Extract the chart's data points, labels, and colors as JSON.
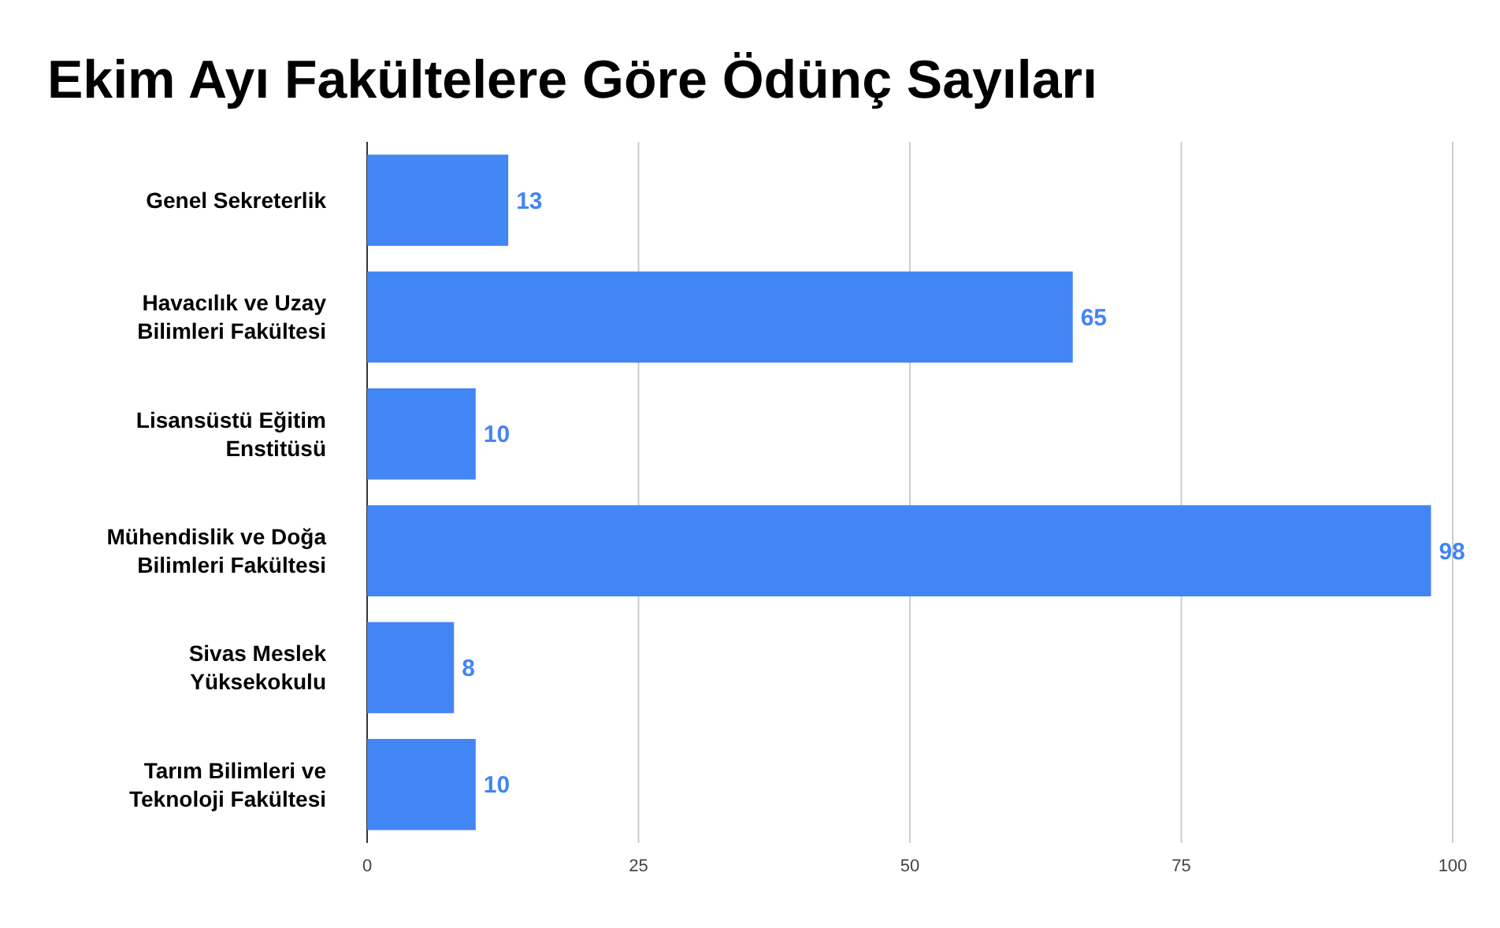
{
  "chart_data": {
    "type": "bar",
    "orientation": "horizontal",
    "title": "Ekim Ayı Fakültelere Göre Ödünç Sayıları",
    "categories": [
      "Genel Sekreterlik",
      "Havacılık ve Uzay Bilimleri Fakültesi",
      "Lisansüstü Eğitim Enstitüsü",
      "Mühendislik ve Doğa Bilimleri Fakültesi",
      "Sivas Meslek Yüksekokulu",
      "Tarım Bilimleri ve Teknoloji Fakültesi"
    ],
    "values": [
      13,
      65,
      10,
      98,
      8,
      10
    ],
    "color": "#4285f4",
    "data_labels": true,
    "xlim": [
      0,
      100
    ],
    "xticks": [
      0,
      25,
      50,
      75,
      100
    ],
    "grid": "x"
  }
}
